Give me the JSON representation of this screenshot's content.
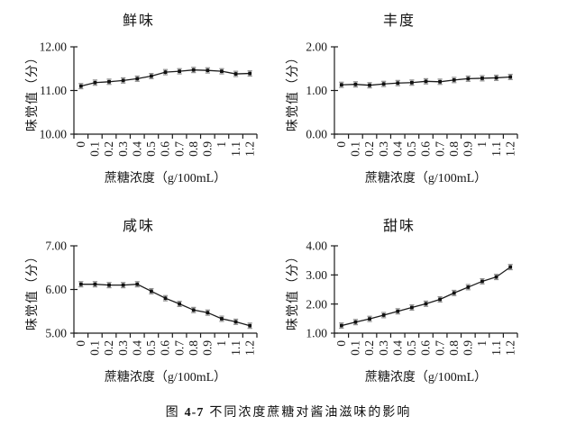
{
  "figure": {
    "caption_prefix": "图",
    "caption_number": "4-7",
    "caption_text": "不同浓度蔗糖对酱油滋味的影响"
  },
  "style": {
    "line_color": "#1c1c1c",
    "marker_color": "#111111",
    "error_color": "#8f8f8f",
    "axis_color": "#1c1c1c",
    "background": "#ffffff"
  },
  "chart_data": [
    {
      "type": "line",
      "title": "鲜味",
      "xlabel": "蔗糖浓度（g/100mL）",
      "ylabel": "味觉值（分）",
      "legend": null,
      "grid": false,
      "categories": [
        "0",
        "0.1",
        "0.2",
        "0.3",
        "0.4",
        "0.5",
        "0.6",
        "0.7",
        "0.8",
        "0.9",
        "1",
        "1.1",
        "1.2"
      ],
      "values": [
        11.1,
        11.18,
        11.2,
        11.23,
        11.27,
        11.33,
        11.42,
        11.44,
        11.47,
        11.46,
        11.44,
        11.38,
        11.39
      ],
      "error": 0.06,
      "ylim": [
        10,
        12
      ],
      "ytick_values": [
        10,
        11,
        12
      ],
      "ytick_labels": [
        "10.00",
        "11.00",
        "12.00"
      ]
    },
    {
      "type": "line",
      "title": "丰度",
      "xlabel": "蔗糖浓度（g/100mL）",
      "ylabel": "味觉值（分）",
      "legend": null,
      "grid": false,
      "categories": [
        "0",
        "0.1",
        "0.2",
        "0.3",
        "0.4",
        "0.5",
        "0.6",
        "0.7",
        "0.8",
        "0.9",
        "1",
        "1.1",
        "1.2"
      ],
      "values": [
        1.13,
        1.14,
        1.12,
        1.15,
        1.17,
        1.18,
        1.21,
        1.2,
        1.24,
        1.27,
        1.28,
        1.29,
        1.31
      ],
      "error": 0.06,
      "ylim": [
        0,
        2
      ],
      "ytick_values": [
        0,
        1,
        2
      ],
      "ytick_labels": [
        "0.00",
        "1.00",
        "2.00"
      ]
    },
    {
      "type": "line",
      "title": "咸味",
      "xlabel": "蔗糖浓度（g/100mL）",
      "ylabel": "味觉值（分）",
      "legend": null,
      "grid": false,
      "categories": [
        "0",
        "0.1",
        "0.2",
        "0.3",
        "0.4",
        "0.5",
        "0.6",
        "0.7",
        "0.8",
        "0.9",
        "1",
        "1.1",
        "1.2"
      ],
      "values": [
        6.12,
        6.12,
        6.1,
        6.1,
        6.12,
        5.96,
        5.8,
        5.67,
        5.53,
        5.47,
        5.33,
        5.26,
        5.17
      ],
      "error": 0.06,
      "ylim": [
        5,
        7
      ],
      "ytick_values": [
        5,
        6,
        7
      ],
      "ytick_labels": [
        "5.00",
        "6.00",
        "7.00"
      ]
    },
    {
      "type": "line",
      "title": "甜味",
      "xlabel": "蔗糖浓度（g/100mL）",
      "ylabel": "味觉值（分）",
      "legend": null,
      "grid": false,
      "categories": [
        "0",
        "0.1",
        "0.2",
        "0.3",
        "0.4",
        "0.5",
        "0.6",
        "0.7",
        "0.8",
        "0.9",
        "1",
        "1.1",
        "1.2"
      ],
      "values": [
        1.26,
        1.38,
        1.49,
        1.62,
        1.75,
        1.88,
        2.01,
        2.16,
        2.38,
        2.58,
        2.78,
        2.93,
        3.27
      ],
      "error": 0.09,
      "ylim": [
        1,
        4
      ],
      "ytick_values": [
        1,
        2,
        3,
        4
      ],
      "ytick_labels": [
        "1.00",
        "2.00",
        "3.00",
        "4.00"
      ]
    }
  ]
}
